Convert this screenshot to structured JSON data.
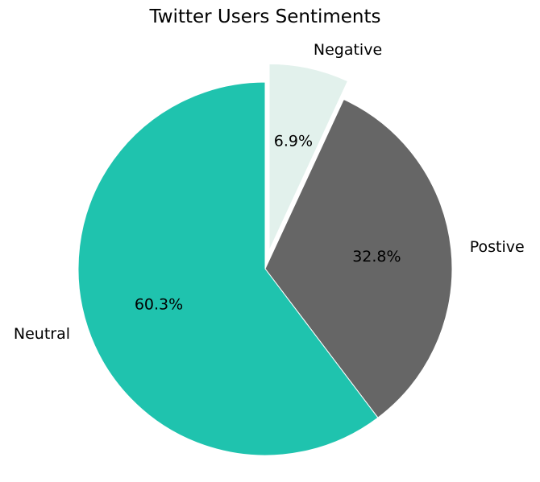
{
  "chart_data": {
    "type": "pie",
    "title": "Twitter Users Sentiments",
    "labels": [
      "Negative",
      "Postive",
      "Neutral"
    ],
    "values": [
      6.9,
      32.8,
      60.3
    ],
    "percent_labels": [
      "6.9%",
      "32.8%",
      "60.3%"
    ],
    "colors": [
      "#e2f1ec",
      "#666666",
      "#1fc3ae"
    ],
    "explode": [
      0.1,
      0,
      0
    ],
    "start_angle_deg": 90,
    "direction": "clockwise",
    "edge_color": "#ffffff",
    "legend": "none"
  }
}
